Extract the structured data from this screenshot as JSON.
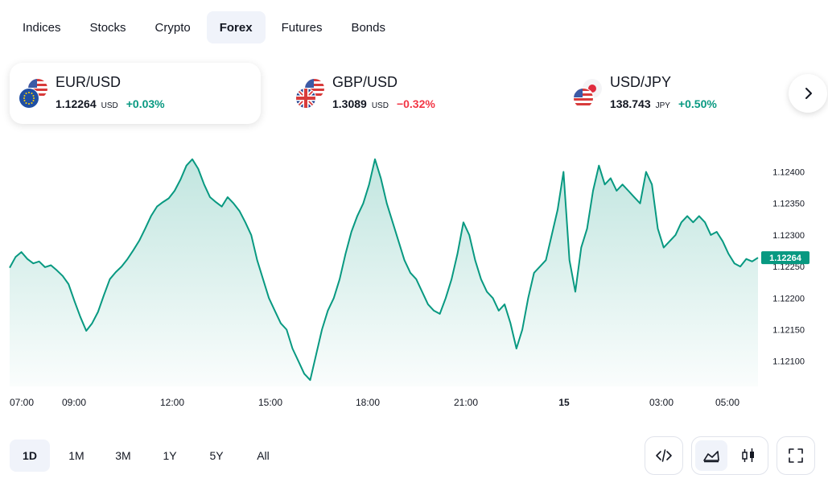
{
  "tabs": [
    "Indices",
    "Stocks",
    "Crypto",
    "Forex",
    "Futures",
    "Bonds"
  ],
  "active_tab": "Forex",
  "symbols": [
    {
      "symbol": "EUR/USD",
      "price": "1.12264",
      "currency": "USD",
      "change": "+0.03%",
      "direction": "up",
      "selected": true,
      "flags": [
        "us-flag-icon",
        "eu-flag-icon"
      ]
    },
    {
      "symbol": "GBP/USD",
      "price": "1.3089",
      "currency": "USD",
      "change": "−0.32%",
      "direction": "down",
      "selected": false,
      "flags": [
        "us-flag-icon",
        "uk-flag-icon"
      ]
    },
    {
      "symbol": "USD/JPY",
      "price": "138.743",
      "currency": "JPY",
      "change": "+0.50%",
      "direction": "up",
      "selected": false,
      "flags": [
        "jp-flag-icon",
        "us-flag-icon"
      ]
    }
  ],
  "next_icon": "chevron-right-icon",
  "colors": {
    "positive": "#089981",
    "negative": "#f23645",
    "line": "#089981",
    "active_bg": "#f0f3fa"
  },
  "chart_data": {
    "type": "area",
    "symbol": "EUR/USD",
    "x_ticks": [
      "07:00",
      "09:00",
      "12:00",
      "15:00",
      "18:00",
      "21:00",
      "15",
      "03:00",
      "05:00"
    ],
    "y_ticks": [
      "1.12400",
      "1.12350",
      "1.12300",
      "1.12250",
      "1.12200",
      "1.12150",
      "1.12100"
    ],
    "ylim": [
      1.1206,
      1.1243
    ],
    "last_price_label": "1.12264",
    "series": [
      {
        "values": [
          1.12248,
          1.12265,
          1.12273,
          1.12262,
          1.12255,
          1.12258,
          1.12249,
          1.12252,
          1.12244,
          1.12235,
          1.12222,
          1.12195,
          1.1217,
          1.12148,
          1.1216,
          1.12178,
          1.12205,
          1.1223,
          1.12241,
          1.1225,
          1.12262,
          1.12276,
          1.12291,
          1.1231,
          1.1233,
          1.12345,
          1.12352,
          1.12358,
          1.1237,
          1.12388,
          1.1241,
          1.1242,
          1.12405,
          1.1238,
          1.1236,
          1.12352,
          1.12345,
          1.1236,
          1.1235,
          1.12338,
          1.1232,
          1.123,
          1.1226,
          1.1223,
          1.122,
          1.1218,
          1.1216,
          1.1215,
          1.1212,
          1.121,
          1.1208,
          1.1207,
          1.1211,
          1.1215,
          1.1218,
          1.122,
          1.1223,
          1.1227,
          1.12305,
          1.1233,
          1.1235,
          1.1238,
          1.1242,
          1.1239,
          1.1235,
          1.1232,
          1.1229,
          1.1226,
          1.1224,
          1.1223,
          1.1221,
          1.1219,
          1.1218,
          1.12175,
          1.122,
          1.1223,
          1.1227,
          1.1232,
          1.123,
          1.1226,
          1.1223,
          1.1221,
          1.122,
          1.1218,
          1.1219,
          1.1216,
          1.1212,
          1.1215,
          1.122,
          1.1224,
          1.1225,
          1.1226,
          1.123,
          1.1234,
          1.124,
          1.1226,
          1.1221,
          1.1228,
          1.1231,
          1.1237,
          1.1241,
          1.1238,
          1.1239,
          1.1237,
          1.1238,
          1.1237,
          1.1236,
          1.1235,
          1.124,
          1.1238,
          1.1231,
          1.1228,
          1.1229,
          1.123,
          1.1232,
          1.1233,
          1.1232,
          1.1233,
          1.1232,
          1.123,
          1.12305,
          1.1229,
          1.1227,
          1.12255,
          1.1225,
          1.12262,
          1.12258,
          1.12264
        ]
      }
    ]
  },
  "ranges": [
    "1D",
    "1M",
    "3M",
    "1Y",
    "5Y",
    "All"
  ],
  "active_range": "1D",
  "tools": {
    "embed_icon": "code-icon",
    "area_icon": "area-chart-icon",
    "candles_icon": "candlestick-icon",
    "fullscreen_icon": "fullscreen-icon"
  }
}
